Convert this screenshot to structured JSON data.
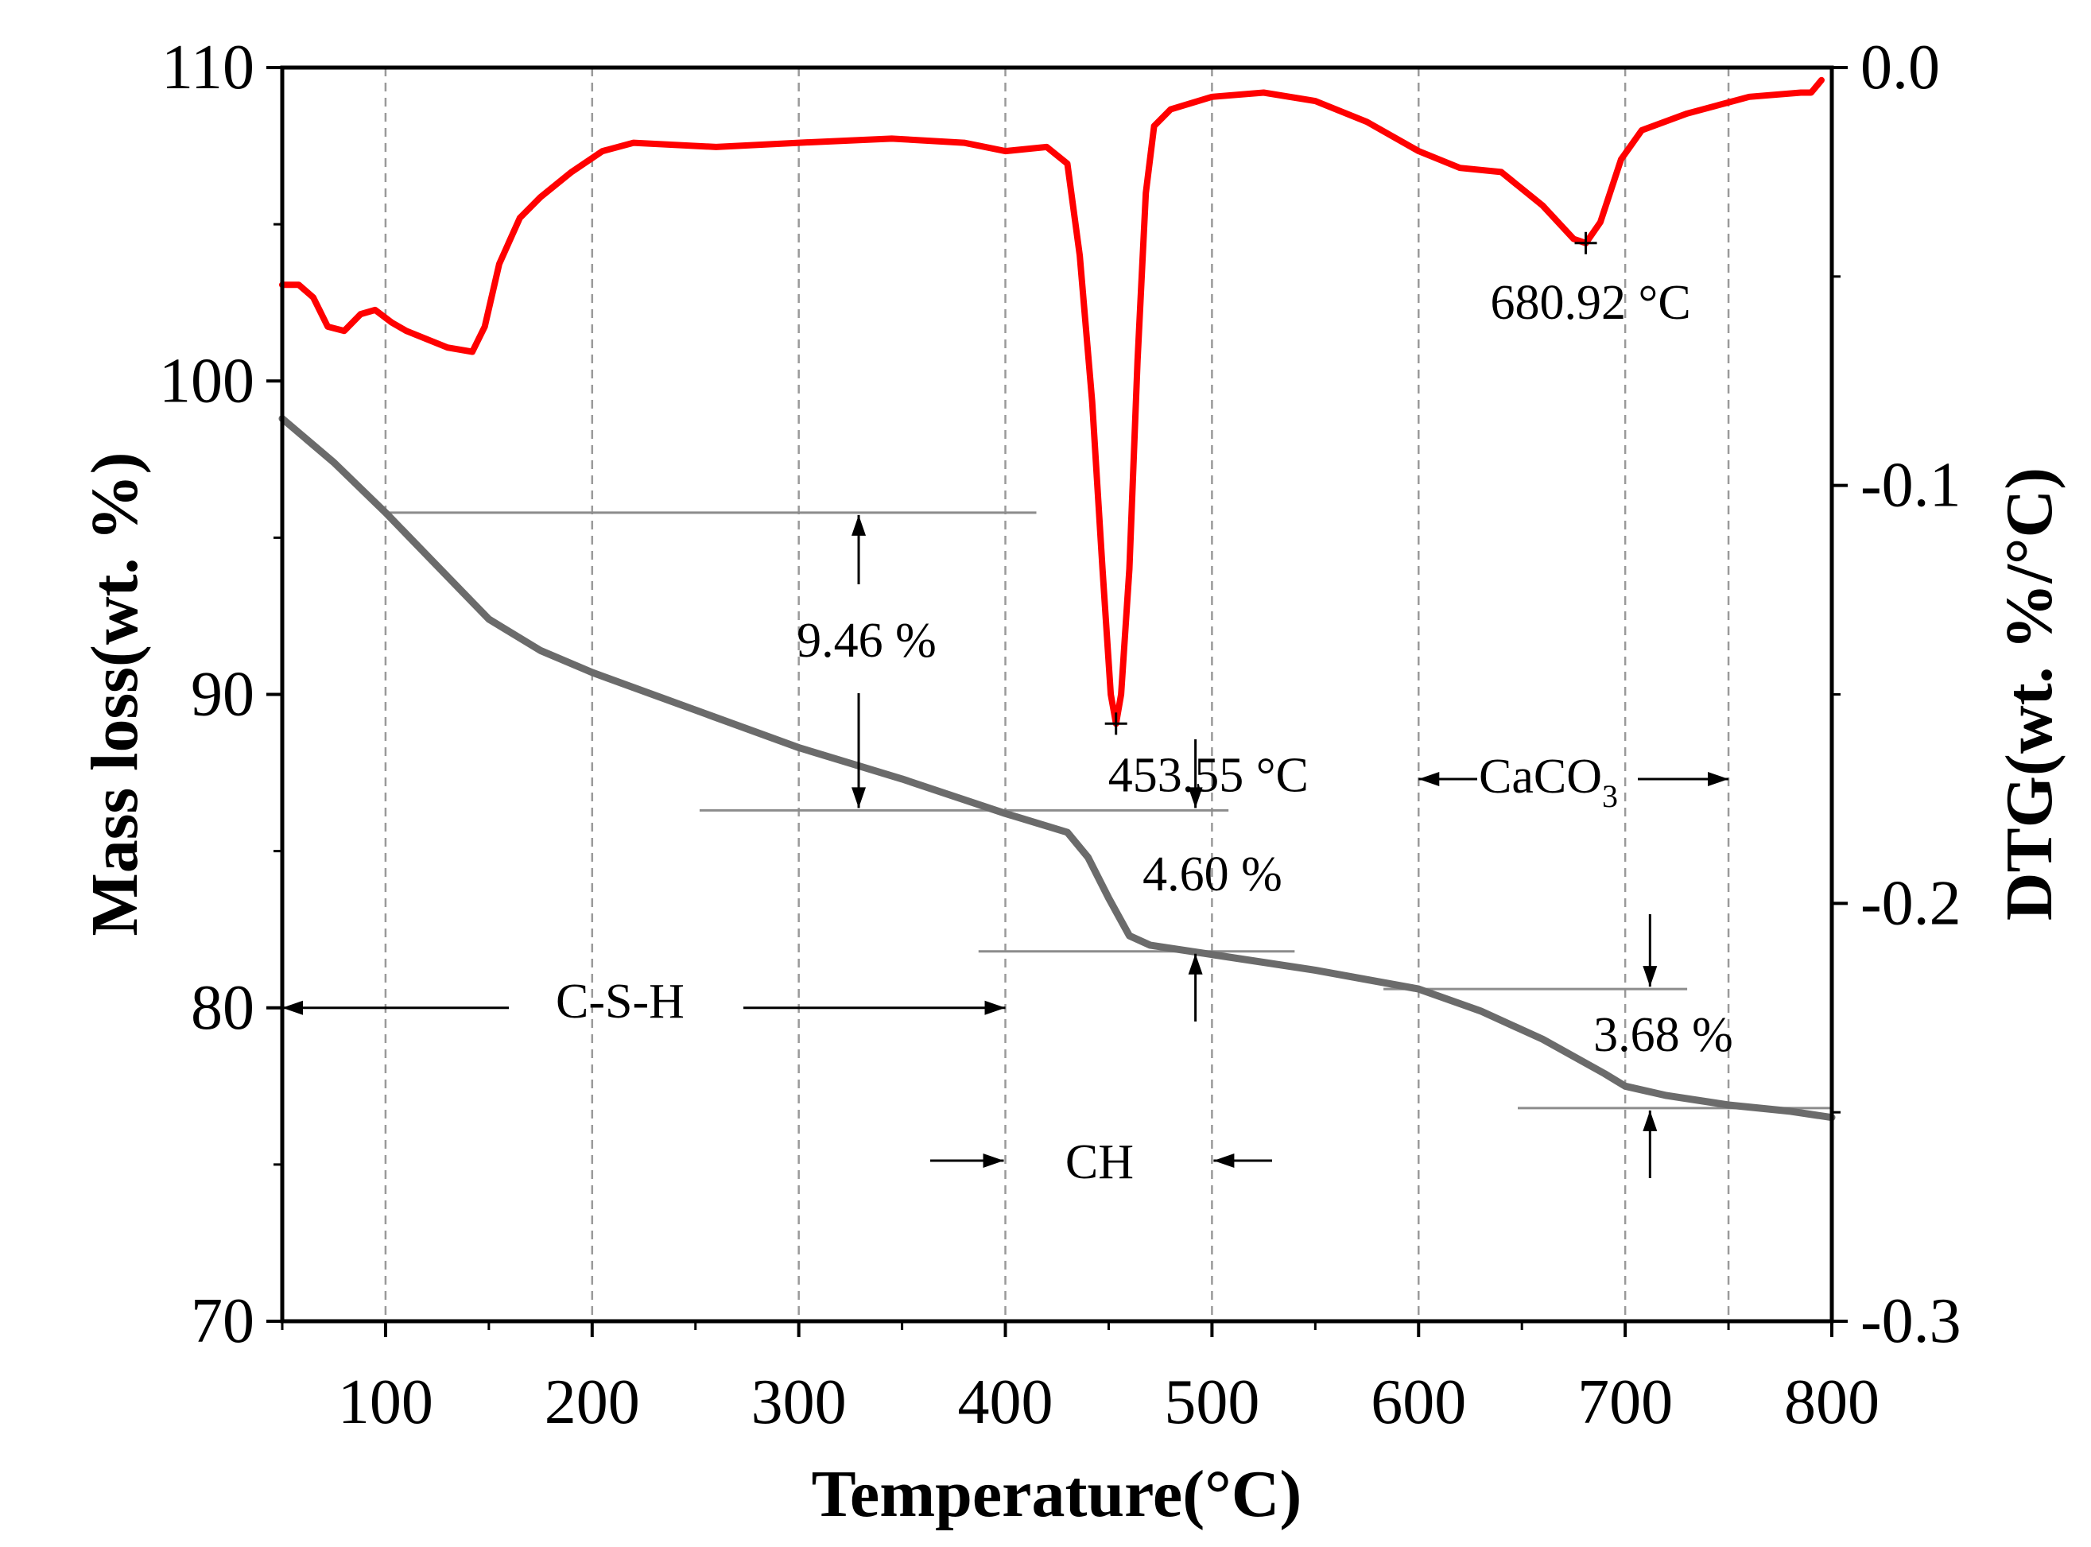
{
  "chart_data": {
    "type": "line",
    "title": "",
    "xlabel": "Temperature(°C)",
    "ylabel_left": "Mass loss(wt. %)",
    "ylabel_right": "DTG(wt. %/°C)",
    "xlim": [
      50,
      800
    ],
    "ylim_left": [
      70,
      110
    ],
    "ylim_right": [
      -0.3,
      0.0
    ],
    "x_ticks": [
      100,
      200,
      300,
      400,
      500,
      600,
      700,
      800
    ],
    "x_tick_labels": [
      "100",
      "200",
      "300",
      "400",
      "500",
      "600",
      "700",
      "800"
    ],
    "y_left_ticks": [
      70,
      80,
      90,
      100,
      110
    ],
    "y_left_tick_labels": [
      "70",
      "80",
      "90",
      "100",
      "110"
    ],
    "y_right_ticks": [
      -0.3,
      -0.2,
      -0.1,
      0.0
    ],
    "y_right_tick_labels": [
      "-0.3",
      "-0.2",
      "-0.1",
      "0.0"
    ],
    "series": [
      {
        "name": "TG",
        "axis": "left",
        "color": "#6b6b6b",
        "x": [
          50,
          75,
          100,
          125,
          150,
          175,
          200,
          250,
          300,
          350,
          400,
          430,
          440,
          450,
          460,
          470,
          500,
          550,
          600,
          630,
          660,
          690,
          700,
          720,
          750,
          780,
          800
        ],
        "y": [
          98.8,
          97.4,
          95.8,
          94.1,
          92.4,
          91.4,
          90.7,
          89.5,
          88.3,
          87.3,
          86.2,
          85.6,
          84.8,
          83.5,
          82.3,
          82.0,
          81.7,
          81.2,
          80.6,
          79.9,
          79.0,
          77.9,
          77.5,
          77.2,
          76.9,
          76.7,
          76.5
        ]
      },
      {
        "name": "DTG",
        "axis": "right",
        "color": "#ff0000",
        "x": [
          50,
          58,
          65,
          72,
          80,
          88,
          95,
          103,
          110,
          120,
          130,
          142,
          148,
          155,
          165,
          175,
          190,
          205,
          220,
          260,
          300,
          345,
          380,
          400,
          420,
          430,
          436,
          442,
          447,
          451,
          453.55,
          456,
          460,
          464,
          468,
          472,
          480,
          500,
          525,
          550,
          575,
          600,
          620,
          640,
          660,
          675,
          680.92,
          688,
          698,
          708,
          730,
          760,
          785,
          790,
          795
        ],
        "y": [
          -0.052,
          -0.052,
          -0.055,
          -0.062,
          -0.063,
          -0.059,
          -0.058,
          -0.061,
          -0.063,
          -0.065,
          -0.067,
          -0.068,
          -0.062,
          -0.047,
          -0.036,
          -0.031,
          -0.025,
          -0.02,
          -0.018,
          -0.019,
          -0.018,
          -0.017,
          -0.018,
          -0.02,
          -0.019,
          -0.023,
          -0.045,
          -0.08,
          -0.12,
          -0.15,
          -0.157,
          -0.15,
          -0.12,
          -0.07,
          -0.03,
          -0.014,
          -0.01,
          -0.007,
          -0.006,
          -0.008,
          -0.013,
          -0.02,
          -0.024,
          -0.025,
          -0.033,
          -0.041,
          -0.042,
          -0.037,
          -0.022,
          -0.015,
          -0.011,
          -0.007,
          -0.006,
          -0.006,
          -0.003
        ]
      }
    ],
    "peaks": [
      {
        "label": "453.55 °C",
        "x": 453.55,
        "y": -0.157
      },
      {
        "label": "680.92 °C",
        "x": 680.92,
        "y": -0.042
      }
    ],
    "annotations": {
      "loss_csh": "9.46 %",
      "loss_ch": "4.60 %",
      "loss_caco3": "3.68 %",
      "region_csh": "C-S-H",
      "region_ch": "CH",
      "region_caco3_main": "CaCO",
      "region_caco3_sub": "3"
    },
    "annotation_levels": {
      "csh_top": 95.8,
      "csh_bottom": 86.3,
      "ch_bottom": 81.8,
      "caco3_top": 80.6,
      "caco3_bottom": 76.8
    },
    "region_bounds": {
      "csh": [
        50,
        400
      ],
      "ch": [
        400,
        500
      ],
      "caco3": [
        600,
        750
      ]
    },
    "grid_x": [
      100,
      200,
      300,
      400,
      500,
      600,
      700,
      750
    ]
  }
}
